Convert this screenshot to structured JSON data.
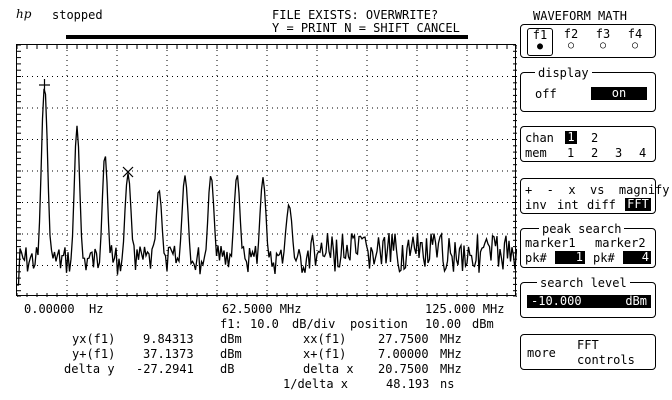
{
  "header": {
    "logo": "hp",
    "status": "stopped",
    "message_line1": "FILE EXISTS: OVERWRITE?",
    "message_line2": "Y = PRINT N = SHIFT CANCEL"
  },
  "axis": {
    "x_start": "0.00000  Hz",
    "x_center": "62.5000 MHz",
    "x_end": "125.000 MHz"
  },
  "scale_line": {
    "source": "f1:",
    "scale": "10.0",
    "scale_unit": "dB/div",
    "position_label": "position",
    "position_value": "10.00",
    "position_unit": "dBm"
  },
  "readouts": [
    {
      "label": "yx(f1)",
      "value": "9.84313",
      "unit": "dBm",
      "label2": "xx(f1)",
      "value2": "27.7500",
      "unit2": "MHz"
    },
    {
      "label": "y+(f1)",
      "value": "37.1373",
      "unit": "dBm",
      "label2": "x+(f1)",
      "value2": "7.00000",
      "unit2": "MHz"
    },
    {
      "label": "delta y",
      "value": "-27.2941",
      "unit": "dB",
      "label2": "delta x",
      "value2": "20.7500",
      "unit2": "MHz"
    },
    {
      "label": "",
      "value": "",
      "unit": "",
      "label2": "1/delta x",
      "value2": "48.193",
      "unit2": "ns"
    }
  ],
  "softkeys": {
    "title": "WAVEFORM MATH",
    "functions": [
      "f1",
      "f2",
      "f3",
      "f4"
    ],
    "display": {
      "title": "display",
      "off": "off",
      "on": "on"
    },
    "source": {
      "chan_label": "chan",
      "chan1": "1",
      "chan2": "2",
      "mem_label": "mem",
      "mem_values": [
        "1",
        "2",
        "3",
        "4"
      ]
    },
    "ops": {
      "line1": "+  -  x  vs  magnify",
      "line2_inv": "inv",
      "line2_int": "int",
      "line2_diff": "diff",
      "line2_fft": "FFT"
    },
    "peak": {
      "title": "peak search",
      "marker1": "marker1",
      "marker2": "marker2",
      "pk1_label": "pk#",
      "pk1_value": "1",
      "pk2_label": "pk#",
      "pk2_value": "4"
    },
    "search_level": {
      "title": "search level",
      "value": "-10.000",
      "unit": "dBm"
    },
    "more": {
      "label": "more",
      "fft1": "FFT",
      "fft2": "controls"
    }
  }
}
